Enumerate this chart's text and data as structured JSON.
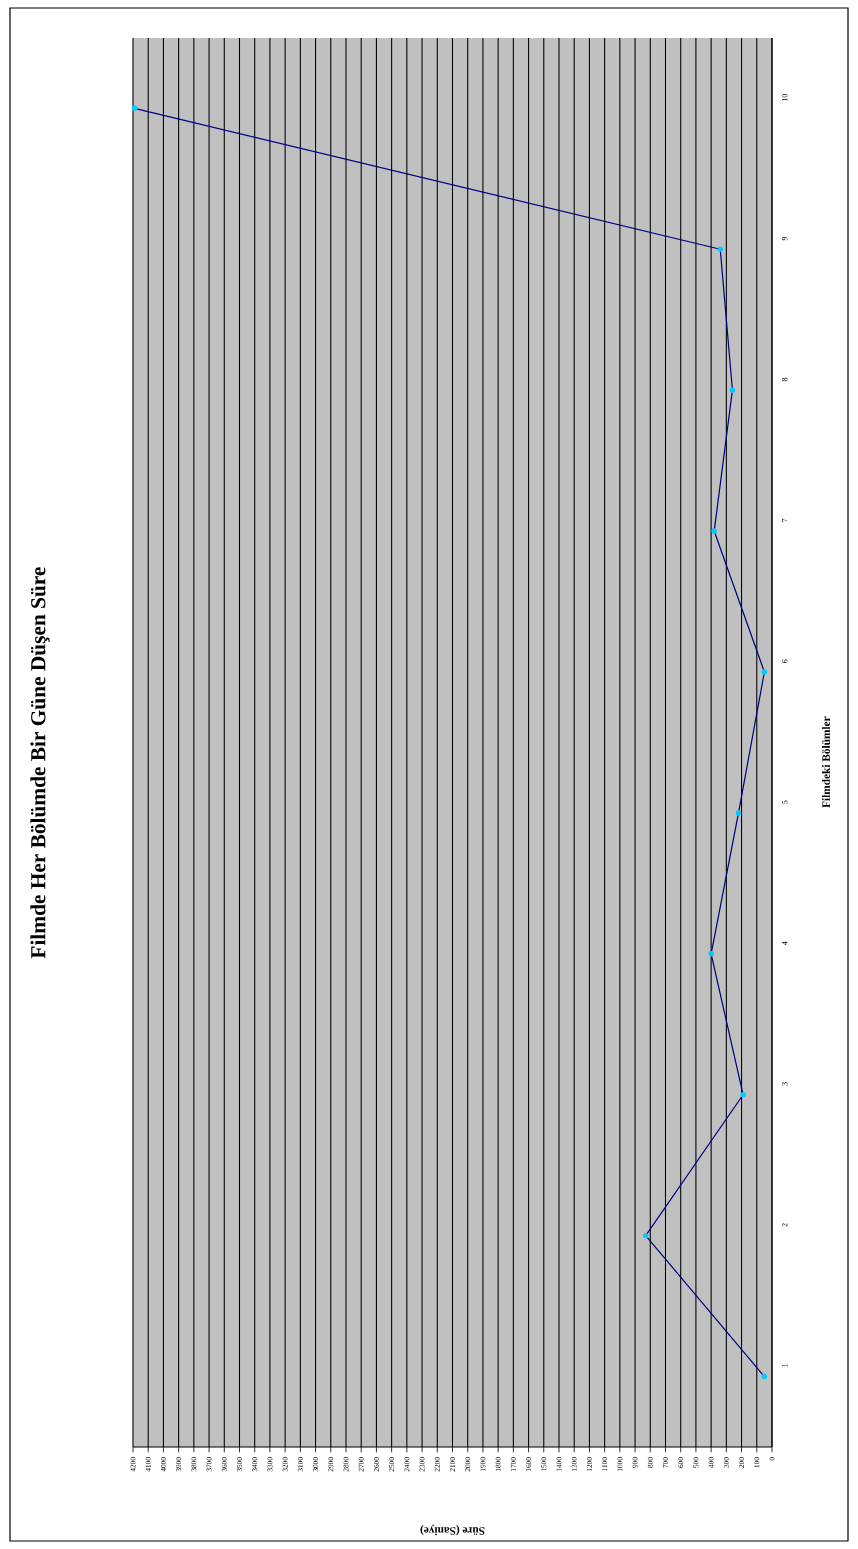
{
  "chart_data": {
    "type": "line",
    "orientation": "horizontal",
    "title": "Filmde Her Bölümde Bir Güne Düşen Süre",
    "xlabel": "Süre (Saniye)",
    "ylabel": "Filmdeki Bölümler",
    "categories": [
      "10",
      "9",
      "8",
      "7",
      "6",
      "5",
      "4",
      "3",
      "2",
      "1"
    ],
    "series": [
      {
        "color": "#000080",
        "values": [
          4190,
          340,
          260,
          380,
          50,
          220,
          400,
          190,
          830,
          50
        ]
      }
    ],
    "xlim": [
      4200,
      0
    ],
    "xticks": [
      0,
      100,
      200,
      300,
      400,
      500,
      600,
      700,
      800,
      900,
      1000,
      1100,
      1200,
      1300,
      1400,
      1500,
      1600,
      1700,
      1800,
      1900,
      2000,
      2100,
      2200,
      2300,
      2400,
      2500,
      2600,
      2700,
      2800,
      2900,
      3000,
      3100,
      3200,
      3300,
      3400,
      3500,
      3600,
      3700,
      3800,
      3900,
      4000,
      4100,
      4200
    ],
    "grid": "x",
    "marker": "circle",
    "line_style": "solid"
  }
}
